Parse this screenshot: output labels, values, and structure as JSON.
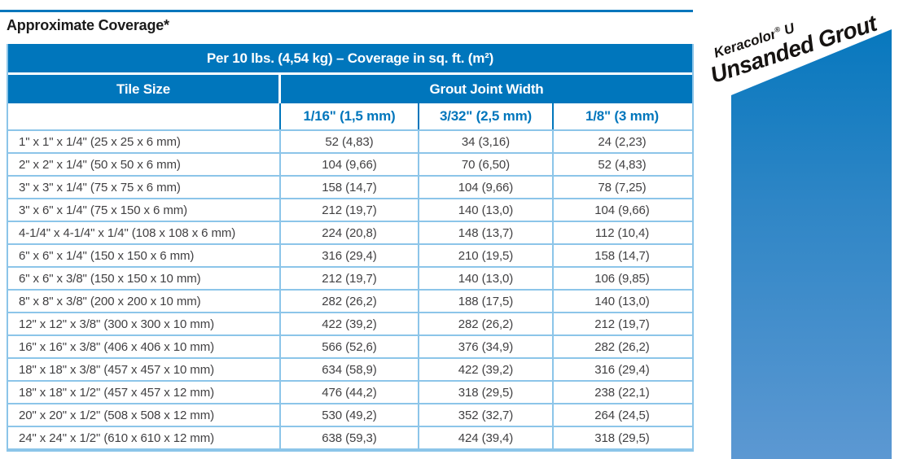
{
  "page": {
    "title": "Approximate Coverage*"
  },
  "table": {
    "header": "Per 10 lbs. (4,54 kg) – Coverage in sq. ft. (m²)",
    "col_group_left": "Tile Size",
    "col_group_right": "Grout Joint Width",
    "columns": [
      "1/16\" (1,5 mm)",
      "3/32\" (2,5 mm)",
      "1/8\" (3 mm)"
    ],
    "rows": [
      {
        "tile": "1\" x 1\" x 1/4\" (25 x 25 x 6 mm)",
        "values": [
          "52 (4,83)",
          "34 (3,16)",
          "24 (2,23)"
        ]
      },
      {
        "tile": "2\" x 2\" x 1/4\" (50 x 50 x 6 mm)",
        "values": [
          "104 (9,66)",
          "70 (6,50)",
          "52 (4,83)"
        ]
      },
      {
        "tile": "3\" x 3\" x 1/4\" (75 x 75 x 6 mm)",
        "values": [
          "158 (14,7)",
          "104 (9,66)",
          "78 (7,25)"
        ]
      },
      {
        "tile": "3\" x 6\" x 1/4\" (75 x 150 x 6 mm)",
        "values": [
          "212 (19,7)",
          "140 (13,0)",
          "104 (9,66)"
        ]
      },
      {
        "tile": "4-1/4\" x 4-1/4\" x 1/4\" (108 x 108 x 6 mm)",
        "values": [
          "224 (20,8)",
          "148 (13,7)",
          "112 (10,4)"
        ]
      },
      {
        "tile": "6\" x 6\" x 1/4\" (150 x 150 x 6 mm)",
        "values": [
          "316 (29,4)",
          "210 (19,5)",
          "158 (14,7)"
        ]
      },
      {
        "tile": "6\" x 6\" x 3/8\" (150 x 150 x 10 mm)",
        "values": [
          "212 (19,7)",
          "140 (13,0)",
          "106 (9,85)"
        ]
      },
      {
        "tile": "8\" x 8\" x 3/8\" (200 x 200 x 10 mm)",
        "values": [
          "282 (26,2)",
          "188 (17,5)",
          "140 (13,0)"
        ]
      },
      {
        "tile": "12\" x 12\" x 3/8\" (300 x 300 x 10 mm)",
        "values": [
          "422 (39,2)",
          "282 (26,2)",
          "212 (19,7)"
        ]
      },
      {
        "tile": "16\" x 16\" x 3/8\" (406 x 406 x 10 mm)",
        "values": [
          "566 (52,6)",
          "376 (34,9)",
          "282 (26,2)"
        ]
      },
      {
        "tile": "18\" x 18\" x 3/8\" (457 x 457 x 10 mm)",
        "values": [
          "634 (58,9)",
          "422 (39,2)",
          "316 (29,4)"
        ]
      },
      {
        "tile": "18\" x 18\" x 1/2\" (457 x 457 x 12 mm)",
        "values": [
          "476 (44,2)",
          "318 (29,5)",
          "238 (22,1)"
        ]
      },
      {
        "tile": "20\" x 20\" x 1/2\" (508 x 508 x 12 mm)",
        "values": [
          "530 (49,2)",
          "352 (32,7)",
          "264 (24,5)"
        ]
      },
      {
        "tile": "24\" x 24\" x 1/2\" (610 x 610 x 12 mm)",
        "values": [
          "638 (59,3)",
          "424 (39,4)",
          "318 (29,5)"
        ]
      }
    ]
  },
  "badge": {
    "brand_name": "Keracolor",
    "brand_mark": "®",
    "brand_suffix": " U",
    "product": "Unsanded Grout"
  },
  "colors": {
    "header_blue": "#0076BC",
    "grid_light_blue": "#8CC5E9",
    "data_text": "#414042",
    "band_gradient_top": "#0878BE",
    "band_gradient_bottom": "#5C98D2"
  }
}
